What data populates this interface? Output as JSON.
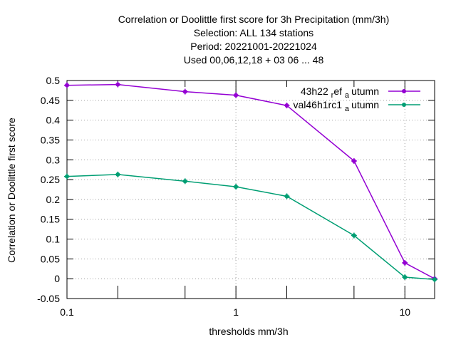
{
  "chart_data": {
    "type": "line",
    "title_lines": [
      "Correlation or Doolittle first score  for 3h Precipitation (mm/3h)",
      "Selection: ALL    134 stations",
      "Period: 20221001-20221024",
      "Used  00,06,12,18  + 03 06 ... 48"
    ],
    "xlabel": "thresholds mm/3h",
    "ylabel": "Correlation or Doolittle first score",
    "x_scale": "log",
    "xlim": [
      0.1,
      15
    ],
    "ylim": [
      -0.05,
      0.5
    ],
    "x_ticks": [
      0.1,
      1,
      10
    ],
    "x_tick_labels": [
      "0.1",
      "1",
      "10"
    ],
    "x_minor_ticks": [
      0.2,
      0.5,
      2,
      5
    ],
    "y_ticks": [
      -0.05,
      0,
      0.05,
      0.1,
      0.15,
      0.2,
      0.25,
      0.3,
      0.35,
      0.4,
      0.45,
      0.5
    ],
    "y_tick_labels": [
      "-0.05",
      "0",
      "0.05",
      "0.1",
      "0.15",
      "0.2",
      "0.25",
      "0.3",
      "0.35",
      "0.4",
      "0.45",
      "0.5"
    ],
    "grid": true,
    "legend_position": "top-right",
    "series": [
      {
        "name_main": "43h22",
        "name_sub1": "r",
        "name_mid": "ef",
        "name_sub2": "a",
        "name_tail": "utumn",
        "color": "#9400d3",
        "x": [
          0.1,
          0.2,
          0.5,
          1,
          2,
          5,
          10,
          15
        ],
        "y": [
          0.488,
          0.49,
          0.472,
          0.463,
          0.437,
          0.297,
          0.04,
          0.0
        ]
      },
      {
        "name_main": "val46h1rc1",
        "name_sub1": "",
        "name_mid": "",
        "name_sub2": "a",
        "name_tail": "utumn",
        "color": "#009e73",
        "x": [
          0.1,
          0.2,
          0.5,
          1,
          2,
          5,
          10,
          15
        ],
        "y": [
          0.258,
          0.263,
          0.246,
          0.232,
          0.208,
          0.109,
          0.004,
          -0.002
        ]
      }
    ]
  }
}
